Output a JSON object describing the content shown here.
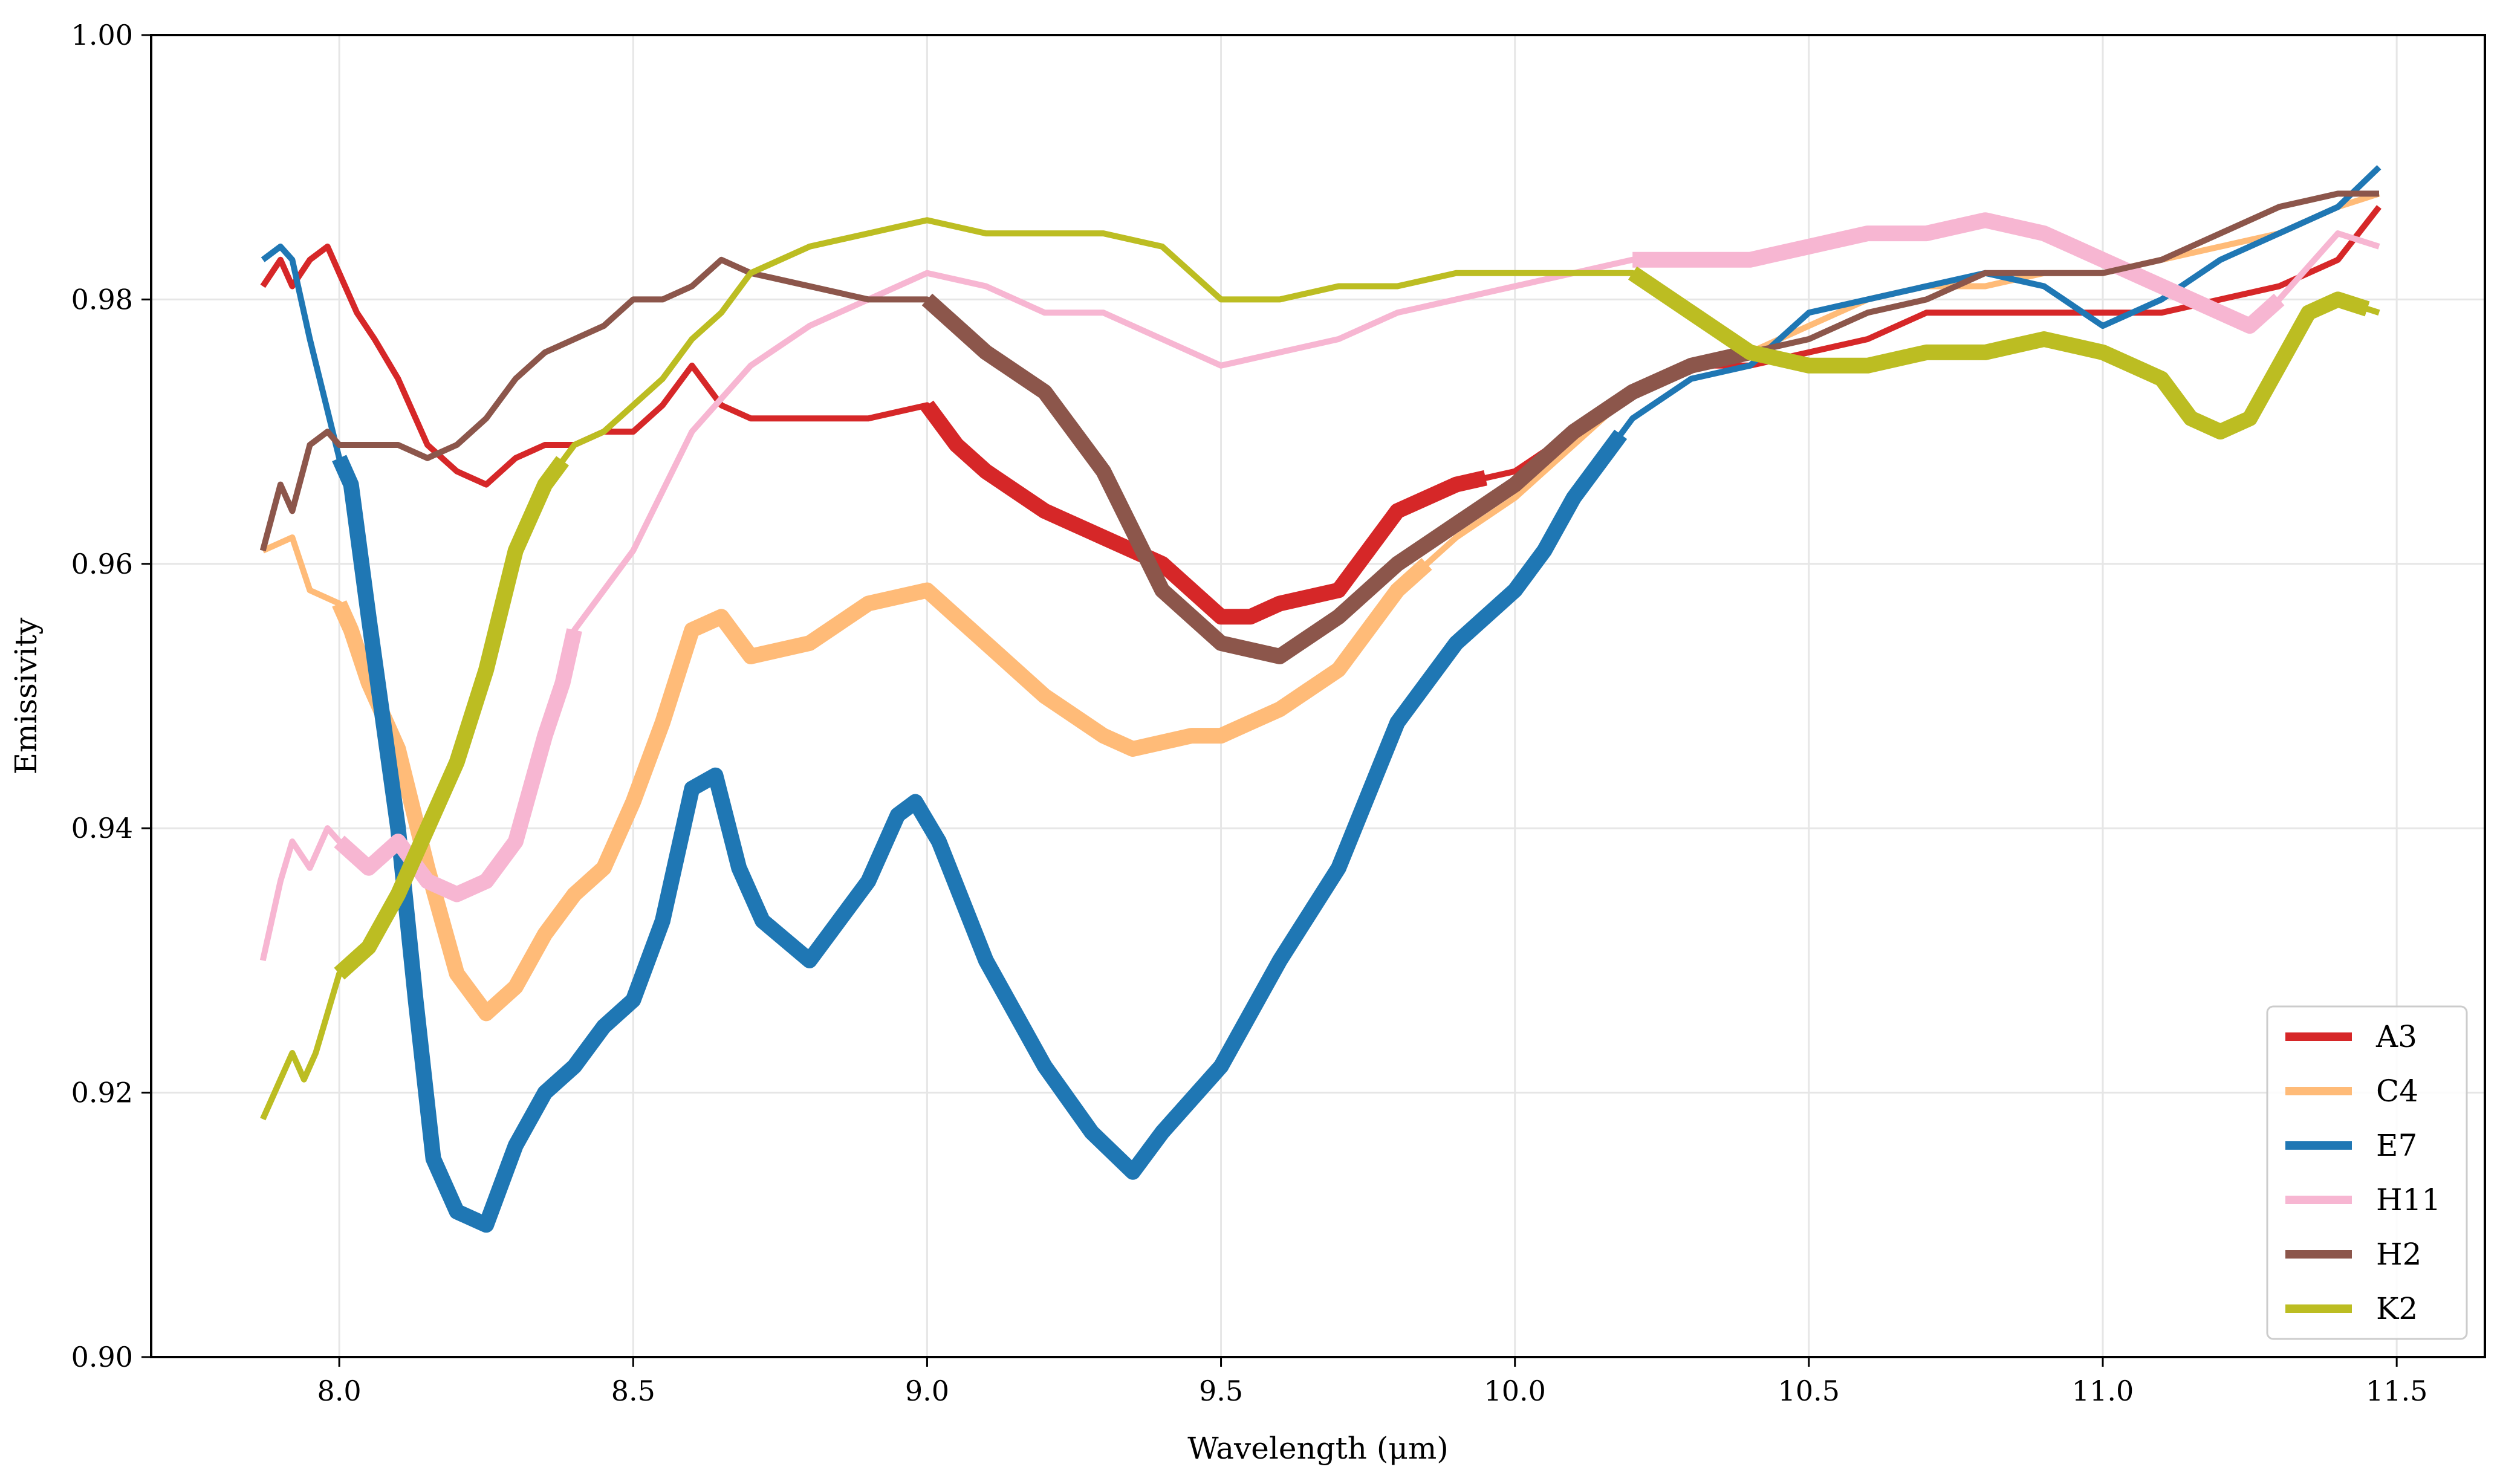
{
  "chart_data": {
    "type": "line",
    "title": "",
    "xlabel": "Wavelength (μm)",
    "ylabel": "Emissivity",
    "xlim": [
      7.68,
      11.65
    ],
    "ylim": [
      0.9,
      1.0
    ],
    "xticks": [
      8.0,
      8.5,
      9.0,
      9.5,
      10.0,
      10.5,
      11.0,
      11.5
    ],
    "xtick_labels": [
      "8.0",
      "8.5",
      "9.0",
      "9.5",
      "10.0",
      "10.5",
      "11.0",
      "11.5"
    ],
    "yticks": [
      0.9,
      0.92,
      0.94,
      0.96,
      0.98,
      1.0
    ],
    "ytick_labels": [
      "0.90",
      "0.92",
      "0.94",
      "0.96",
      "0.98",
      "1.00"
    ],
    "grid": true,
    "legend_position": "bottom-right",
    "series": [
      {
        "name": "A3",
        "color": "#d62728",
        "x": [
          7.87,
          7.9,
          7.92,
          7.95,
          7.98,
          8.0,
          8.03,
          8.06,
          8.1,
          8.15,
          8.2,
          8.25,
          8.3,
          8.35,
          8.4,
          8.45,
          8.5,
          8.55,
          8.6,
          8.65,
          8.7,
          8.8,
          8.9,
          9.0,
          9.05,
          9.1,
          9.2,
          9.3,
          9.4,
          9.5,
          9.55,
          9.6,
          9.7,
          9.8,
          9.9,
          10.0,
          10.1,
          10.2,
          10.3,
          10.4,
          10.5,
          10.6,
          10.7,
          10.8,
          10.9,
          11.0,
          11.1,
          11.2,
          11.3,
          11.4,
          11.47
        ],
        "y": [
          0.981,
          0.983,
          0.981,
          0.983,
          0.984,
          0.982,
          0.979,
          0.977,
          0.974,
          0.969,
          0.967,
          0.966,
          0.968,
          0.969,
          0.969,
          0.97,
          0.97,
          0.972,
          0.975,
          0.972,
          0.971,
          0.971,
          0.971,
          0.972,
          0.969,
          0.967,
          0.964,
          0.962,
          0.96,
          0.956,
          0.956,
          0.957,
          0.958,
          0.964,
          0.966,
          0.967,
          0.97,
          0.973,
          0.975,
          0.975,
          0.976,
          0.977,
          0.979,
          0.979,
          0.979,
          0.979,
          0.979,
          0.98,
          0.981,
          0.983,
          0.987
        ],
        "thick_range": [
          9.0,
          9.95
        ]
      },
      {
        "name": "C4",
        "color": "#ffbb78",
        "x": [
          7.87,
          7.92,
          7.95,
          8.0,
          8.02,
          8.05,
          8.1,
          8.15,
          8.2,
          8.25,
          8.3,
          8.35,
          8.4,
          8.45,
          8.5,
          8.55,
          8.6,
          8.65,
          8.7,
          8.8,
          8.9,
          9.0,
          9.05,
          9.1,
          9.2,
          9.3,
          9.35,
          9.45,
          9.5,
          9.55,
          9.6,
          9.7,
          9.8,
          9.9,
          10.0,
          10.1,
          10.2,
          10.3,
          10.4,
          10.5,
          10.6,
          10.7,
          10.8,
          10.9,
          11.0,
          11.1,
          11.2,
          11.3,
          11.4,
          11.47
        ],
        "y": [
          0.961,
          0.962,
          0.958,
          0.957,
          0.955,
          0.951,
          0.946,
          0.937,
          0.929,
          0.926,
          0.928,
          0.932,
          0.935,
          0.937,
          0.942,
          0.948,
          0.955,
          0.956,
          0.953,
          0.954,
          0.957,
          0.958,
          0.956,
          0.954,
          0.95,
          0.947,
          0.946,
          0.947,
          0.947,
          0.948,
          0.949,
          0.952,
          0.958,
          0.962,
          0.965,
          0.969,
          0.973,
          0.975,
          0.976,
          0.978,
          0.98,
          0.981,
          0.981,
          0.982,
          0.982,
          0.983,
          0.984,
          0.985,
          0.987,
          0.988
        ],
        "thick_range": [
          8.0,
          9.85
        ]
      },
      {
        "name": "E7",
        "color": "#1f77b4",
        "x": [
          7.87,
          7.9,
          7.92,
          7.95,
          8.0,
          8.02,
          8.05,
          8.1,
          8.13,
          8.16,
          8.2,
          8.25,
          8.3,
          8.35,
          8.4,
          8.45,
          8.5,
          8.55,
          8.6,
          8.64,
          8.68,
          8.72,
          8.8,
          8.85,
          8.9,
          8.95,
          8.98,
          9.02,
          9.1,
          9.2,
          9.28,
          9.35,
          9.4,
          9.5,
          9.55,
          9.6,
          9.7,
          9.8,
          9.9,
          10.0,
          10.05,
          10.1,
          10.2,
          10.3,
          10.4,
          10.5,
          10.6,
          10.7,
          10.8,
          10.9,
          11.0,
          11.1,
          11.2,
          11.3,
          11.4,
          11.47
        ],
        "y": [
          0.983,
          0.984,
          0.983,
          0.977,
          0.968,
          0.966,
          0.956,
          0.94,
          0.927,
          0.915,
          0.911,
          0.91,
          0.916,
          0.92,
          0.922,
          0.925,
          0.927,
          0.933,
          0.943,
          0.944,
          0.937,
          0.933,
          0.93,
          0.933,
          0.936,
          0.941,
          0.942,
          0.939,
          0.93,
          0.922,
          0.917,
          0.914,
          0.917,
          0.922,
          0.926,
          0.93,
          0.937,
          0.948,
          0.954,
          0.958,
          0.961,
          0.965,
          0.971,
          0.974,
          0.975,
          0.979,
          0.98,
          0.981,
          0.982,
          0.981,
          0.978,
          0.98,
          0.983,
          0.985,
          0.987,
          0.99
        ],
        "thick_range": [
          8.0,
          10.18
        ]
      },
      {
        "name": "H11",
        "color": "#f7b6d2",
        "x": [
          7.87,
          7.9,
          7.92,
          7.95,
          7.98,
          8.0,
          8.05,
          8.1,
          8.15,
          8.2,
          8.25,
          8.3,
          8.35,
          8.38,
          8.4,
          8.5,
          8.6,
          8.7,
          8.8,
          8.9,
          9.0,
          9.1,
          9.2,
          9.3,
          9.4,
          9.5,
          9.6,
          9.7,
          9.8,
          9.9,
          10.0,
          10.1,
          10.2,
          10.3,
          10.4,
          10.5,
          10.6,
          10.7,
          10.8,
          10.9,
          10.95,
          11.0,
          11.1,
          11.2,
          11.25,
          11.3,
          11.4,
          11.47
        ],
        "y": [
          0.93,
          0.936,
          0.939,
          0.937,
          0.94,
          0.939,
          0.937,
          0.939,
          0.936,
          0.935,
          0.936,
          0.939,
          0.947,
          0.951,
          0.955,
          0.961,
          0.97,
          0.975,
          0.978,
          0.98,
          0.982,
          0.981,
          0.979,
          0.979,
          0.977,
          0.975,
          0.976,
          0.977,
          0.979,
          0.98,
          0.981,
          0.982,
          0.983,
          0.983,
          0.983,
          0.984,
          0.985,
          0.985,
          0.986,
          0.985,
          0.984,
          0.983,
          0.981,
          0.979,
          0.978,
          0.98,
          0.985,
          0.984
        ],
        "thick_ranges": [
          [
            8.0,
            8.4
          ],
          [
            10.2,
            11.3
          ]
        ]
      },
      {
        "name": "H2",
        "color": "#8c564b",
        "x": [
          7.87,
          7.9,
          7.92,
          7.95,
          7.98,
          8.0,
          8.05,
          8.1,
          8.15,
          8.2,
          8.25,
          8.3,
          8.35,
          8.4,
          8.45,
          8.5,
          8.55,
          8.6,
          8.65,
          8.7,
          8.8,
          8.9,
          9.0,
          9.05,
          9.1,
          9.2,
          9.3,
          9.4,
          9.5,
          9.6,
          9.7,
          9.8,
          9.9,
          10.0,
          10.1,
          10.2,
          10.3,
          10.4,
          10.5,
          10.6,
          10.7,
          10.8,
          10.9,
          11.0,
          11.1,
          11.2,
          11.3,
          11.4,
          11.47
        ],
        "y": [
          0.961,
          0.966,
          0.964,
          0.969,
          0.97,
          0.969,
          0.969,
          0.969,
          0.968,
          0.969,
          0.971,
          0.974,
          0.976,
          0.977,
          0.978,
          0.98,
          0.98,
          0.981,
          0.983,
          0.982,
          0.981,
          0.98,
          0.98,
          0.978,
          0.976,
          0.973,
          0.967,
          0.958,
          0.954,
          0.953,
          0.956,
          0.96,
          0.963,
          0.966,
          0.97,
          0.973,
          0.975,
          0.976,
          0.977,
          0.979,
          0.98,
          0.982,
          0.982,
          0.982,
          0.983,
          0.985,
          0.987,
          0.988,
          0.988
        ],
        "thick_range": [
          9.0,
          10.4
        ]
      },
      {
        "name": "K2",
        "color": "#bcbd22",
        "x": [
          7.87,
          7.9,
          7.92,
          7.94,
          7.96,
          7.98,
          8.0,
          8.05,
          8.1,
          8.15,
          8.2,
          8.25,
          8.3,
          8.35,
          8.4,
          8.45,
          8.5,
          8.55,
          8.6,
          8.65,
          8.7,
          8.8,
          8.9,
          9.0,
          9.1,
          9.2,
          9.3,
          9.4,
          9.5,
          9.6,
          9.7,
          9.8,
          9.9,
          10.0,
          10.1,
          10.2,
          10.3,
          10.4,
          10.5,
          10.6,
          10.7,
          10.8,
          10.9,
          11.0,
          11.1,
          11.15,
          11.2,
          11.25,
          11.3,
          11.35,
          11.4,
          11.47
        ],
        "y": [
          0.918,
          0.921,
          0.923,
          0.921,
          0.923,
          0.926,
          0.929,
          0.931,
          0.935,
          0.94,
          0.945,
          0.952,
          0.961,
          0.966,
          0.969,
          0.97,
          0.972,
          0.974,
          0.977,
          0.979,
          0.982,
          0.984,
          0.985,
          0.986,
          0.985,
          0.985,
          0.985,
          0.984,
          0.98,
          0.98,
          0.981,
          0.981,
          0.982,
          0.982,
          0.982,
          0.982,
          0.979,
          0.976,
          0.975,
          0.975,
          0.976,
          0.976,
          0.977,
          0.976,
          0.974,
          0.971,
          0.97,
          0.971,
          0.975,
          0.979,
          0.98,
          0.979
        ],
        "thick_ranges": [
          [
            8.0,
            8.38
          ],
          [
            10.2,
            11.45
          ]
        ]
      }
    ]
  }
}
